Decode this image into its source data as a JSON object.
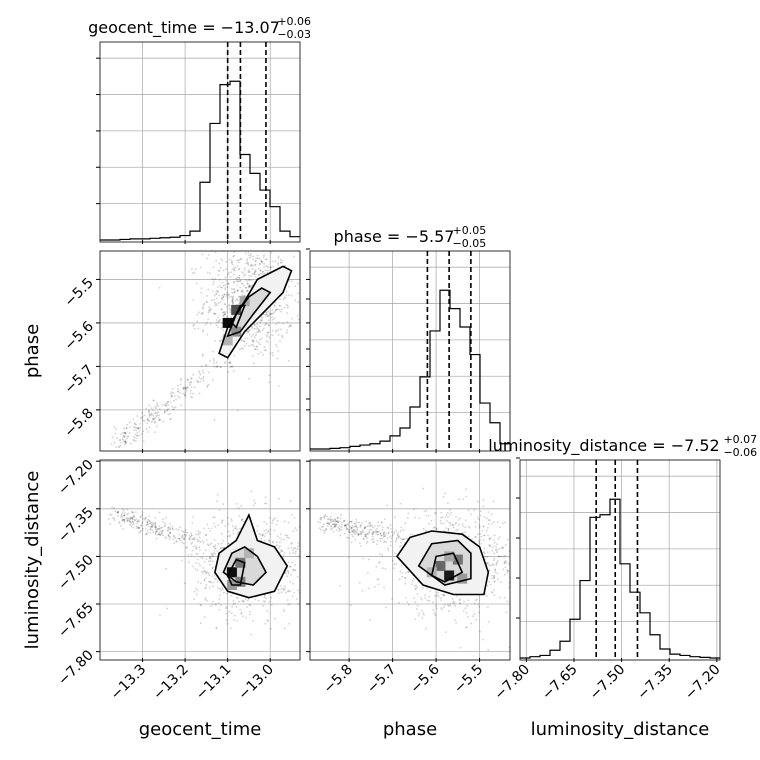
{
  "chart_data": {
    "type": "corner",
    "parameters": [
      "geocent_time",
      "phase",
      "luminosity_distance"
    ],
    "axis_labels": [
      "geocent_time",
      "phase",
      "luminosity_distance"
    ],
    "ranges": [
      [
        -13.4,
        -12.93
      ],
      [
        -5.89,
        -5.43
      ],
      [
        -7.82,
        -7.19
      ]
    ],
    "ticks": [
      [
        -13.3,
        -13.2,
        -13.1,
        -13.0
      ],
      [
        -5.8,
        -5.7,
        -5.6,
        -5.5
      ],
      [
        -7.8,
        -7.65,
        -7.5,
        -7.35,
        -7.2
      ]
    ],
    "tick_labels": [
      [
        "−13.3",
        "−13.2",
        "−13.1",
        "−13.0"
      ],
      [
        "−5.8",
        "−5.7",
        "−5.6",
        "−5.5"
      ],
      [
        "−7.80",
        "−7.65",
        "−7.50",
        "−7.35",
        "−7.20"
      ]
    ],
    "titles": [
      {
        "name": "geocent_time",
        "median": "−13.07",
        "plus": "+0.06",
        "minus": "−0.03"
      },
      {
        "name": "phase",
        "median": "−5.57",
        "plus": "+0.05",
        "minus": "−0.05"
      },
      {
        "name": "luminosity_distance",
        "median": "−7.52",
        "plus": "+0.07",
        "minus": "−0.06"
      }
    ],
    "quantiles": [
      [
        -13.1,
        -13.07,
        -13.01
      ],
      [
        -5.62,
        -5.57,
        -5.52
      ],
      [
        -7.58,
        -7.52,
        -7.45
      ]
    ],
    "histograms": [
      {
        "edges": [
          -13.4,
          -13.3765,
          -13.353,
          -13.3295,
          -13.306,
          -13.2825,
          -13.259,
          -13.2355,
          -13.212,
          -13.1885,
          -13.165,
          -13.1415,
          -13.118,
          -13.0945,
          -13.071,
          -13.0475,
          -13.024,
          -13.0005,
          -12.977,
          -12.9535,
          -12.93
        ],
        "counts": [
          0,
          0,
          0.5,
          1,
          1,
          1.5,
          2,
          2.5,
          4,
          8,
          52,
          105,
          140,
          143,
          77,
          60,
          45,
          30,
          8,
          3
        ]
      },
      {
        "edges": [
          -5.89,
          -5.867,
          -5.844,
          -5.821,
          -5.798,
          -5.775,
          -5.752,
          -5.729,
          -5.706,
          -5.683,
          -5.66,
          -5.637,
          -5.614,
          -5.591,
          -5.568,
          -5.545,
          -5.522,
          -5.499,
          -5.476,
          -5.453,
          -5.43
        ],
        "counts": [
          0,
          0,
          0.5,
          1,
          2,
          3,
          4,
          6,
          10,
          16,
          32,
          55,
          90,
          121,
          107,
          93,
          72,
          35,
          20,
          4
        ]
      },
      {
        "edges": [
          -7.82,
          -7.7885,
          -7.757,
          -7.7255,
          -7.694,
          -7.6625,
          -7.631,
          -7.5995,
          -7.568,
          -7.5365,
          -7.505,
          -7.4735,
          -7.442,
          -7.4105,
          -7.379,
          -7.3475,
          -7.316,
          -7.2845,
          -7.253,
          -7.2215,
          -7.19
        ],
        "counts": [
          0,
          1,
          2,
          6,
          13,
          30,
          60,
          109,
          111,
          123,
          73,
          51,
          35,
          18,
          7,
          3,
          2,
          1,
          0.5,
          0
        ]
      }
    ],
    "pair_panels": [
      {
        "x": "geocent_time",
        "y": "phase",
        "scatter": {
          "center": [
            -13.05,
            -5.55
          ],
          "spread": [
            0.04,
            0.05
          ],
          "tail_from": [
            -13.09,
            -5.67
          ],
          "tail_to": [
            -13.36,
            -5.88
          ]
        },
        "hist_cells": [
          [
            -13.1,
            -5.6,
            0.95
          ],
          [
            -13.08,
            -5.57,
            0.7
          ],
          [
            -13.08,
            -5.62,
            0.45
          ],
          [
            -13.06,
            -5.55,
            0.35
          ],
          [
            -13.1,
            -5.64,
            0.3
          ]
        ],
        "contours": [
          [
            [
              -13.12,
              -5.67
            ],
            [
              -13.1,
              -5.61
            ],
            [
              -13.06,
              -5.55
            ],
            [
              -13.03,
              -5.5
            ],
            [
              -12.97,
              -5.47
            ],
            [
              -12.95,
              -5.48
            ],
            [
              -12.97,
              -5.53
            ],
            [
              -13.01,
              -5.57
            ],
            [
              -13.06,
              -5.62
            ],
            [
              -13.1,
              -5.68
            ]
          ],
          [
            [
              -13.1,
              -5.63
            ],
            [
              -13.08,
              -5.58
            ],
            [
              -13.05,
              -5.54
            ],
            [
              -13.02,
              -5.52
            ],
            [
              -13.0,
              -5.53
            ],
            [
              -13.04,
              -5.58
            ],
            [
              -13.07,
              -5.62
            ]
          ],
          [
            [
              -13.09,
              -5.6
            ],
            [
              -13.07,
              -5.56
            ],
            [
              -13.06,
              -5.56
            ],
            [
              -13.08,
              -5.61
            ]
          ]
        ]
      },
      {
        "x": "geocent_time",
        "y": "luminosity_distance",
        "scatter": {
          "center": [
            -13.05,
            -7.52
          ],
          "spread": [
            0.05,
            0.06
          ],
          "tail_from": [
            -13.15,
            -7.46
          ],
          "tail_to": [
            -13.36,
            -7.37
          ]
        },
        "hist_cells": [
          [
            -13.09,
            -7.55,
            0.95
          ],
          [
            -13.07,
            -7.52,
            0.55
          ],
          [
            -13.07,
            -7.58,
            0.5
          ],
          [
            -13.05,
            -7.49,
            0.3
          ],
          [
            -13.09,
            -7.59,
            0.4
          ]
        ],
        "contours": [
          [
            [
              -13.13,
              -7.55
            ],
            [
              -13.12,
              -7.49
            ],
            [
              -13.08,
              -7.45
            ],
            [
              -13.05,
              -7.37
            ],
            [
              -13.03,
              -7.45
            ],
            [
              -12.99,
              -7.47
            ],
            [
              -12.96,
              -7.53
            ],
            [
              -12.99,
              -7.61
            ],
            [
              -13.05,
              -7.63
            ],
            [
              -13.1,
              -7.61
            ]
          ],
          [
            [
              -13.11,
              -7.55
            ],
            [
              -13.09,
              -7.49
            ],
            [
              -13.06,
              -7.47
            ],
            [
              -13.03,
              -7.5
            ],
            [
              -13.01,
              -7.55
            ],
            [
              -13.04,
              -7.59
            ],
            [
              -13.08,
              -7.58
            ]
          ],
          [
            [
              -13.1,
              -7.56
            ],
            [
              -13.08,
              -7.51
            ],
            [
              -13.06,
              -7.52
            ],
            [
              -13.07,
              -7.59
            ],
            [
              -13.09,
              -7.59
            ]
          ]
        ]
      },
      {
        "x": "phase",
        "y": "luminosity_distance",
        "scatter": {
          "center": [
            -5.56,
            -7.52
          ],
          "spread": [
            0.06,
            0.06
          ],
          "tail_from": [
            -5.66,
            -7.45
          ],
          "tail_to": [
            -5.86,
            -7.39
          ]
        },
        "hist_cells": [
          [
            -5.57,
            -7.56,
            0.9
          ],
          [
            -5.59,
            -7.53,
            0.6
          ],
          [
            -5.55,
            -7.51,
            0.55
          ],
          [
            -5.57,
            -7.5,
            0.35
          ],
          [
            -5.54,
            -7.57,
            0.4
          ],
          [
            -5.61,
            -7.55,
            0.3
          ]
        ],
        "contours": [
          [
            [
              -5.69,
              -7.5
            ],
            [
              -5.66,
              -7.44
            ],
            [
              -5.61,
              -7.42
            ],
            [
              -5.54,
              -7.43
            ],
            [
              -5.5,
              -7.47
            ],
            [
              -5.48,
              -7.55
            ],
            [
              -5.49,
              -7.62
            ],
            [
              -5.56,
              -7.62
            ],
            [
              -5.63,
              -7.59
            ]
          ],
          [
            [
              -5.64,
              -7.53
            ],
            [
              -5.61,
              -7.46
            ],
            [
              -5.55,
              -7.45
            ],
            [
              -5.52,
              -7.49
            ],
            [
              -5.52,
              -7.57
            ],
            [
              -5.58,
              -7.59
            ]
          ],
          [
            [
              -5.61,
              -7.56
            ],
            [
              -5.6,
              -7.5
            ],
            [
              -5.56,
              -7.49
            ],
            [
              -5.54,
              -7.55
            ],
            [
              -5.58,
              -7.58
            ]
          ]
        ]
      }
    ]
  }
}
